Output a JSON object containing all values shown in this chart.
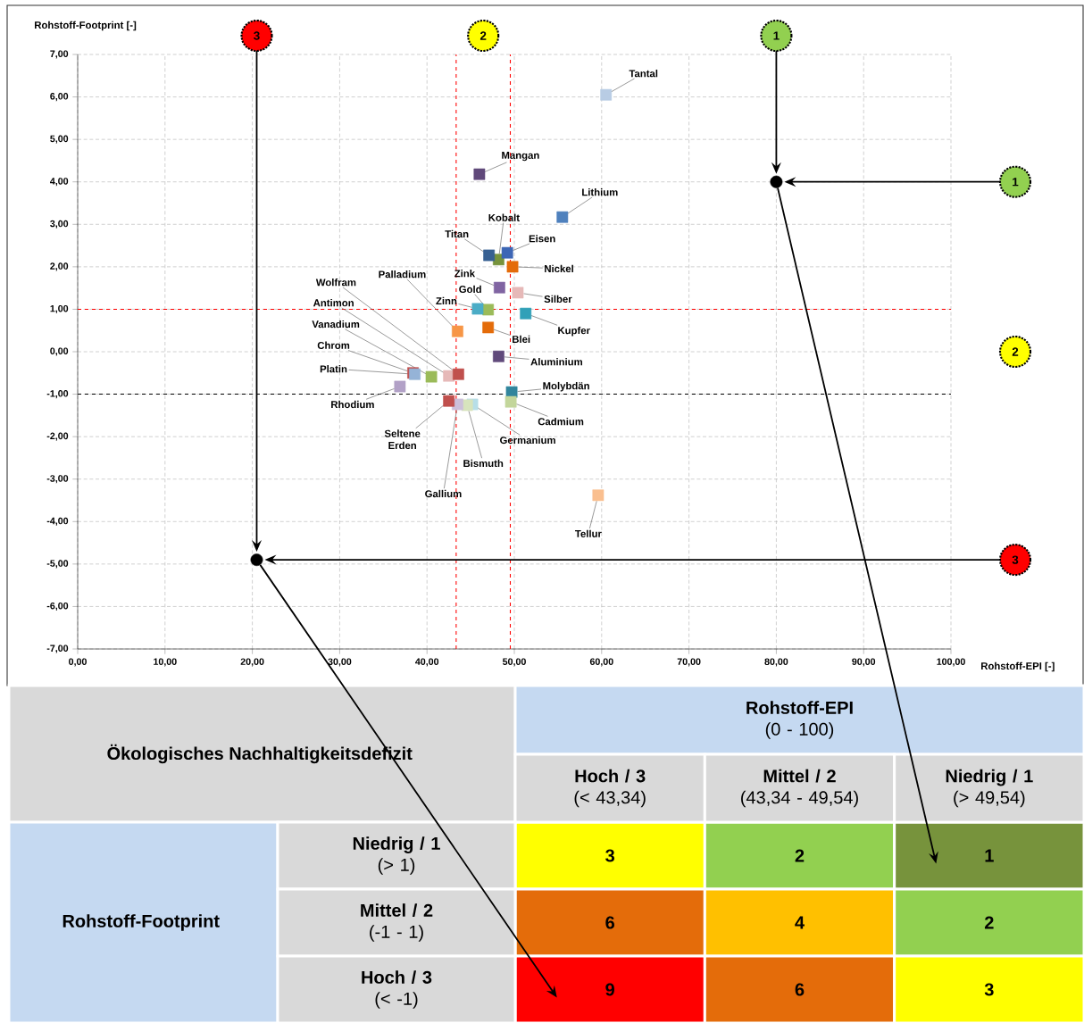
{
  "chart_data": [
    {
      "type": "scatter",
      "xlabel": "Rohstoff-EPI [-]",
      "ylabel": "Rohstoff-Footprint [-]",
      "xlim": [
        0,
        100
      ],
      "ylim": [
        -7,
        7
      ],
      "xticks": [
        {
          "value": 0,
          "label": "0,00"
        },
        {
          "value": 10,
          "label": "10,00"
        },
        {
          "value": 20,
          "label": "20,00"
        },
        {
          "value": 30,
          "label": "30,00"
        },
        {
          "value": 40,
          "label": "40,00"
        },
        {
          "value": 50,
          "label": "50,00"
        },
        {
          "value": 60,
          "label": "60,00"
        },
        {
          "value": 70,
          "label": "70,00"
        },
        {
          "value": 80,
          "label": "80,00"
        },
        {
          "value": 90,
          "label": "90,00"
        },
        {
          "value": 100,
          "label": "100,00"
        }
      ],
      "yticks": [
        {
          "value": -7,
          "label": "-7,00"
        },
        {
          "value": -6,
          "label": "-6,00"
        },
        {
          "value": -5,
          "label": "-5,00"
        },
        {
          "value": -4,
          "label": "-4,00"
        },
        {
          "value": -3,
          "label": "-3,00"
        },
        {
          "value": -2,
          "label": "-2,00"
        },
        {
          "value": -1,
          "label": "-1,00"
        },
        {
          "value": 0,
          "label": "0,00"
        },
        {
          "value": 1,
          "label": "1,00"
        },
        {
          "value": 2,
          "label": "2,00"
        },
        {
          "value": 3,
          "label": "3,00"
        },
        {
          "value": 4,
          "label": "4,00"
        },
        {
          "value": 5,
          "label": "5,00"
        },
        {
          "value": 6,
          "label": "6,00"
        },
        {
          "value": 7,
          "label": "7,00"
        }
      ],
      "grid": true,
      "marker": "square",
      "series": [
        {
          "x": [
            60.5,
            46.0,
            55.5,
            48.2,
            47.1,
            49.2,
            49.8,
            48.3,
            47.0,
            45.8,
            50.4,
            51.3,
            43.5,
            47.0,
            48.2,
            49.7,
            49.6,
            45.2,
            44.6,
            43.5,
            42.5,
            59.6,
            36.9,
            38.4,
            38.6,
            40.5,
            42.5,
            43.6
          ],
          "values": [
            6.05,
            4.18,
            3.17,
            2.17,
            2.27,
            2.33,
            2.0,
            1.51,
            0.99,
            1.01,
            1.39,
            0.9,
            0.48,
            0.57,
            -0.11,
            -0.95,
            -1.18,
            -1.24,
            -1.26,
            -1.24,
            -1.16,
            -3.38,
            -0.82,
            -0.5,
            -0.53,
            -0.59,
            -0.57,
            -0.53
          ],
          "colors": [
            "#b8cce4",
            "#60497a",
            "#4f81bd",
            "#77933c",
            "#376092",
            "#3d66b5",
            "#e46c0a",
            "#8064a2",
            "#9bbb59",
            "#4bacc6",
            "#e6b9b8",
            "#31a0b8",
            "#f79646",
            "#e46c0a",
            "#604a7b",
            "#31859c",
            "#c3d69b",
            "#b7dee8",
            "#d7e4bd",
            "#ccc0da",
            "#c0504d",
            "#fabf8f",
            "#b2a1c7",
            "#c0504d",
            "#95b3d7",
            "#9bbb59",
            "#e6b9b8",
            "#c0504d"
          ]
        },
        {
          "x": [
            80,
            20.5
          ],
          "values": [
            4,
            -4.9
          ],
          "color": "#000000",
          "marker": "circle"
        }
      ],
      "ref_lines": [
        {
          "axis": "x",
          "value": 43.34,
          "color": "#ff0000",
          "line_style": "dashed"
        },
        {
          "axis": "x",
          "value": 49.54,
          "color": "#ff0000",
          "line_style": "dashed"
        },
        {
          "axis": "y",
          "value": 1,
          "color": "#ff0000",
          "line_style": "dashed"
        },
        {
          "axis": "y",
          "value": -1,
          "color": "#000000",
          "line_style": "dashed"
        }
      ],
      "annotations": [
        {
          "text": "Tantal",
          "x": 60.5,
          "y": 6.05
        },
        {
          "text": "Mangan",
          "x": 46.0,
          "y": 4.18
        },
        {
          "text": "Lithium",
          "x": 55.5,
          "y": 3.17
        },
        {
          "text": "Kobalt",
          "x": 48.2,
          "y": 2.17
        },
        {
          "text": "Titan",
          "x": 47.1,
          "y": 2.27
        },
        {
          "text": "Eisen",
          "x": 49.2,
          "y": 2.33
        },
        {
          "text": "Nickel",
          "x": 49.8,
          "y": 2.0
        },
        {
          "text": "Zink",
          "x": 48.3,
          "y": 1.51
        },
        {
          "text": "Gold",
          "x": 47.0,
          "y": 0.99
        },
        {
          "text": "Zinn",
          "x": 45.8,
          "y": 1.01
        },
        {
          "text": "Silber",
          "x": 50.4,
          "y": 1.39
        },
        {
          "text": "Kupfer",
          "x": 51.3,
          "y": 0.9
        },
        {
          "text": "Palladium",
          "x": 43.5,
          "y": 0.48
        },
        {
          "text": "Blei",
          "x": 47.0,
          "y": 0.57
        },
        {
          "text": "Aluminium",
          "x": 48.2,
          "y": -0.11
        },
        {
          "text": "Molybdän",
          "x": 49.7,
          "y": -0.95
        },
        {
          "text": "Cadmium",
          "x": 49.6,
          "y": -1.18
        },
        {
          "text": "Germanium",
          "x": 45.2,
          "y": -1.24
        },
        {
          "text": "Bismuth",
          "x": 44.6,
          "y": -1.26
        },
        {
          "text": "Gallium",
          "x": 43.5,
          "y": -1.24
        },
        {
          "text": "Seltene Erden",
          "x": 42.5,
          "y": -1.16
        },
        {
          "text": "Tellur",
          "x": 59.6,
          "y": -3.38
        },
        {
          "text": "Rhodium",
          "x": 36.9,
          "y": -0.82
        },
        {
          "text": "Chrom",
          "x": 38.4,
          "y": -0.5
        },
        {
          "text": "Platin",
          "x": 38.6,
          "y": -0.53
        },
        {
          "text": "Vanadium",
          "x": 40.5,
          "y": -0.59
        },
        {
          "text": "Antimon",
          "x": 42.5,
          "y": -0.57
        },
        {
          "text": "Wolfram",
          "x": 43.6,
          "y": -0.53
        },
        "3",
        "2",
        "1",
        "1",
        "2",
        "3"
      ]
    },
    {
      "type": "heatmap",
      "title": "Ökologisches Nachhaltigkeitsdefizit",
      "xlabel": "**Rohstoff-EPI** (0 - 100)",
      "ylabel": "Rohstoff-Footprint",
      "categories": [
        "**Hoch / 3** (< 43,34)",
        "**Mittel / 2** (43,34 - 49,54)",
        "**Niedrig / 1** (> 49,54)"
      ],
      "y_categories": [
        "**Niedrig / 1** (> 1)",
        "**Mittel / 2** (-1 - 1)",
        "**Hoch / 3** (< -1)"
      ],
      "cells": [
        [
          3,
          2,
          1
        ],
        [
          6,
          4,
          2
        ],
        [
          9,
          6,
          3
        ]
      ],
      "data_labels": true
    }
  ]
}
